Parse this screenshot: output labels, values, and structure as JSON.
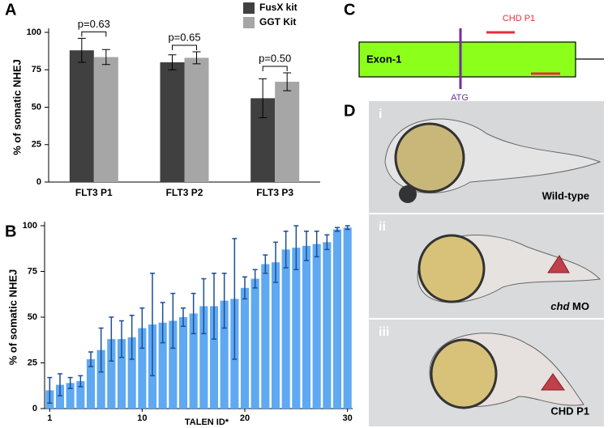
{
  "panel_labels": [
    "A",
    "B",
    "C",
    "D"
  ],
  "chart_data": [
    {
      "type": "bar",
      "ylabel": "% of somatic NHEJ",
      "categories": [
        "FLT3 P1",
        "FLT3 P2",
        "FLT3 P3"
      ],
      "series": [
        {
          "name": "FusX kit",
          "color": "#404040",
          "values": [
            88,
            80,
            56
          ],
          "errors": [
            8,
            5,
            13
          ]
        },
        {
          "name": "GGT Kit",
          "color": "#a6a6a6",
          "values": [
            83.5,
            83,
            67
          ],
          "errors": [
            5,
            4,
            6
          ]
        }
      ],
      "annotations": [
        "p=0.63",
        "p=0.65",
        "p=0.50"
      ],
      "ylim": [
        0,
        100
      ],
      "yticks": [
        0,
        25,
        50,
        75,
        100
      ],
      "legend": "top-right"
    },
    {
      "type": "bar",
      "xlabel": "TALEN ID*",
      "ylabel": "% of somatic NHEJ",
      "x": [
        1,
        2,
        3,
        4,
        5,
        6,
        7,
        8,
        9,
        10,
        11,
        12,
        13,
        14,
        15,
        16,
        17,
        18,
        19,
        20,
        21,
        22,
        23,
        24,
        25,
        26,
        27,
        28,
        29,
        30
      ],
      "series": [
        {
          "color": "#5ea9f2",
          "error_color": "#1f4e96",
          "values": [
            10,
            13,
            14,
            15,
            27,
            32,
            38,
            38,
            39,
            44,
            46,
            47,
            48,
            50,
            52,
            56,
            56,
            59,
            60,
            66,
            71,
            79,
            80,
            87,
            88,
            89,
            90,
            91,
            98,
            99
          ],
          "errors": [
            7,
            6,
            3,
            3,
            4,
            12,
            12,
            10,
            12,
            11,
            28,
            11,
            15,
            5,
            11,
            15,
            18,
            15,
            33,
            6,
            5,
            5,
            11,
            10,
            12,
            8,
            7,
            4,
            1,
            1
          ]
        }
      ],
      "xlim": [
        0.5,
        30.5
      ],
      "xticks": [
        1,
        10,
        20,
        30
      ],
      "ylim": [
        0,
        100
      ],
      "yticks": [
        0,
        25,
        50,
        75,
        100
      ]
    }
  ],
  "diagram": {
    "exon": "Exon-1",
    "atg": "ATG",
    "primer": "CHD P1"
  },
  "embryos": [
    {
      "numeral": "i",
      "label": "Wild-type"
    },
    {
      "numeral": "ii",
      "label_italic": "chd",
      "label": "MO"
    },
    {
      "numeral": "iii",
      "label": "CHD P1"
    }
  ]
}
